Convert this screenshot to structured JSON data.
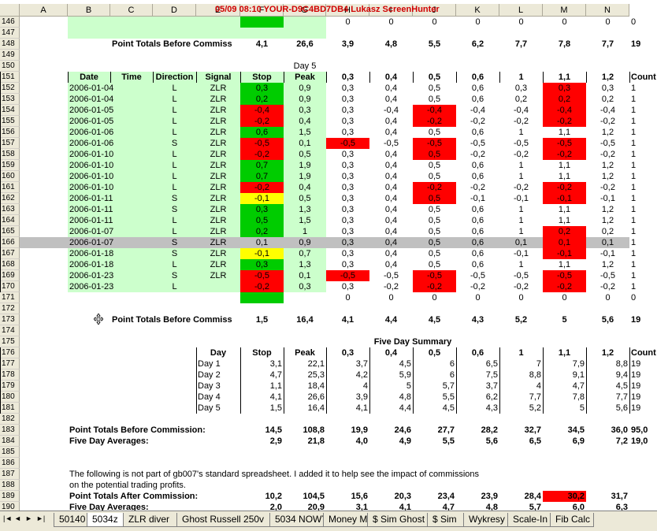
{
  "titlebar": {
    "text": "05/09  08:10  YOUR-D9C4BD7DB4  Lukasz  ScreenHunter"
  },
  "columns": [
    "A",
    "B",
    "C",
    "D",
    "E",
    "F",
    "G",
    "H",
    "I",
    "J",
    "K",
    "L",
    "M",
    "N"
  ],
  "rows_numbers": [
    "146",
    "147",
    "148",
    "149",
    "150",
    "151",
    "152",
    "153",
    "154",
    "155",
    "156",
    "157",
    "158",
    "159",
    "160",
    "161",
    "162",
    "163",
    "164",
    "165",
    "166",
    "167",
    "168",
    "169",
    "170",
    "171",
    "172",
    "173",
    "174",
    "175",
    "176",
    "177",
    "178",
    "179",
    "180",
    "181",
    "182",
    "183",
    "184",
    "185",
    "186",
    "187",
    "188",
    "189",
    "190"
  ],
  "colors": {
    "light_green": "#ccffcc",
    "green": "#00cc00",
    "red": "#ff0000",
    "yellow": "#ffff00",
    "grey_row": "#c0c0c0"
  },
  "r146": {
    "vals": [
      "0",
      "0",
      "0",
      "0",
      "0",
      "0",
      "0",
      "0"
    ]
  },
  "r148": {
    "label": "Point Totals Before Commiss",
    "stop": "4,1",
    "peak": "26,6",
    "vals": [
      "3,9",
      "4,8",
      "5,5",
      "6,2",
      "7,7",
      "7,8",
      "7,7",
      "19"
    ]
  },
  "r150": {
    "label": "Day 5"
  },
  "r151": {
    "headers": [
      "Date",
      "Time",
      "Direction",
      "Signal",
      "Stop",
      "Peak",
      "0,3",
      "0,4",
      "0,5",
      "0,6",
      "1",
      "1,1",
      "1,2",
      "Count"
    ]
  },
  "day5": [
    [
      "2006-01-04",
      "L",
      "ZLR",
      "0,3",
      "0,9",
      "0,3",
      "0,4",
      "0,5",
      "0,6",
      "0,3",
      "0,3",
      "0,3",
      "1"
    ],
    [
      "2006-01-04",
      "L",
      "ZLR",
      "0,2",
      "0,9",
      "0,3",
      "0,4",
      "0,5",
      "0,6",
      "0,2",
      "0,2",
      "0,2",
      "1"
    ],
    [
      "2006-01-05",
      "L",
      "ZLR",
      "-0,4",
      "0,3",
      "0,3",
      "-0,4",
      "-0,4",
      "-0,4",
      "-0,4",
      "-0,4",
      "-0,4",
      "1"
    ],
    [
      "2006-01-05",
      "L",
      "ZLR",
      "-0,2",
      "0,4",
      "0,3",
      "0,4",
      "-0,2",
      "-0,2",
      "-0,2",
      "-0,2",
      "-0,2",
      "1"
    ],
    [
      "2006-01-06",
      "L",
      "ZLR",
      "0,6",
      "1,5",
      "0,3",
      "0,4",
      "0,5",
      "0,6",
      "1",
      "1,1",
      "1,2",
      "1"
    ],
    [
      "2006-01-06",
      "S",
      "ZLR",
      "-0,5",
      "0,1",
      "-0,5",
      "-0,5",
      "-0,5",
      "-0,5",
      "-0,5",
      "-0,5",
      "-0,5",
      "1"
    ],
    [
      "2006-01-10",
      "L",
      "ZLR",
      "-0,2",
      "0,5",
      "0,3",
      "0,4",
      "0,5",
      "-0,2",
      "-0,2",
      "-0,2",
      "-0,2",
      "1"
    ],
    [
      "2006-01-10",
      "L",
      "ZLR",
      "0,7",
      "1,9",
      "0,3",
      "0,4",
      "0,5",
      "0,6",
      "1",
      "1,1",
      "1,2",
      "1"
    ],
    [
      "2006-01-10",
      "L",
      "ZLR",
      "0,7",
      "1,9",
      "0,3",
      "0,4",
      "0,5",
      "0,6",
      "1",
      "1,1",
      "1,2",
      "1"
    ],
    [
      "2006-01-10",
      "L",
      "ZLR",
      "-0,2",
      "0,4",
      "0,3",
      "0,4",
      "-0,2",
      "-0,2",
      "-0,2",
      "-0,2",
      "-0,2",
      "1"
    ],
    [
      "2006-01-11",
      "S",
      "ZLR",
      "-0,1",
      "0,5",
      "0,3",
      "0,4",
      "0,5",
      "-0,1",
      "-0,1",
      "-0,1",
      "-0,1",
      "1"
    ],
    [
      "2006-01-11",
      "S",
      "ZLR",
      "0,3",
      "1,3",
      "0,3",
      "0,4",
      "0,5",
      "0,6",
      "1",
      "1,1",
      "1,2",
      "1"
    ],
    [
      "2006-01-11",
      "L",
      "ZLR",
      "0,5",
      "1,5",
      "0,3",
      "0,4",
      "0,5",
      "0,6",
      "1",
      "1,1",
      "1,2",
      "1"
    ],
    [
      "2006-01-07",
      "L",
      "ZLR",
      "0,2",
      "1",
      "0,3",
      "0,4",
      "0,5",
      "0,6",
      "1",
      "0,2",
      "0,2",
      "1"
    ],
    [
      "2006-01-07",
      "S",
      "ZLR",
      "0,1",
      "0,9",
      "0,3",
      "0,4",
      "0,5",
      "0,6",
      "0,1",
      "0,1",
      "0,1",
      "1"
    ],
    [
      "2006-01-18",
      "S",
      "ZLR",
      "-0,1",
      "0,7",
      "0,3",
      "0,4",
      "0,5",
      "0,6",
      "-0,1",
      "-0,1",
      "-0,1",
      "1"
    ],
    [
      "2006-01-18",
      "L",
      "ZLR",
      "0,3",
      "1,3",
      "0,3",
      "0,4",
      "0,5",
      "0,6",
      "1",
      "1,1",
      "1,2",
      "1"
    ],
    [
      "2006-01-23",
      "S",
      "ZLR",
      "-0,5",
      "0,1",
      "-0,5",
      "-0,5",
      "-0,5",
      "-0,5",
      "-0,5",
      "-0,5",
      "-0,5",
      "1"
    ],
    [
      "2006-01-23",
      "L",
      "",
      "-0,2",
      "0,3",
      "0,3",
      "-0,2",
      "-0,2",
      "-0,2",
      "-0,2",
      "-0,2",
      "-0,2",
      "1"
    ]
  ],
  "r171": {
    "vals": [
      "0",
      "0",
      "0",
      "0",
      "0",
      "0",
      "0",
      "0"
    ]
  },
  "r173": {
    "label": "Point Totals Before Commiss",
    "stop": "1,5",
    "peak": "16,4",
    "vals": [
      "4,1",
      "4,4",
      "4,5",
      "4,3",
      "5,2",
      "5",
      "5,6",
      "19"
    ]
  },
  "r175": {
    "label": "Five Day Summary"
  },
  "summary_headers": [
    "Day",
    "Stop",
    "Peak",
    "0,3",
    "0,4",
    "0,5",
    "0,6",
    "1",
    "1,1",
    "1,2",
    "Count"
  ],
  "summary": [
    [
      "Day 1",
      "3,1",
      "22,1",
      "3,7",
      "4,5",
      "6",
      "6,5",
      "7",
      "7,9",
      "8,8",
      "19"
    ],
    [
      "Day 2",
      "4,7",
      "25,3",
      "4,2",
      "5,9",
      "6",
      "7,5",
      "8,8",
      "9,1",
      "9,4",
      "19"
    ],
    [
      "Day 3",
      "1,1",
      "18,4",
      "4",
      "5",
      "5,7",
      "3,7",
      "4",
      "4,7",
      "4,5",
      "19"
    ],
    [
      "Day 4",
      "4,1",
      "26,6",
      "3,9",
      "4,8",
      "5,5",
      "6,2",
      "7,7",
      "7,8",
      "7,7",
      "19"
    ],
    [
      "Day 5",
      "1,5",
      "16,4",
      "4,1",
      "4,4",
      "4,5",
      "4,3",
      "5,2",
      "5",
      "5,6",
      "19"
    ]
  ],
  "r183": {
    "label": "Point Totals Before Commission:",
    "vals": [
      "14,5",
      "108,8",
      "19,9",
      "24,6",
      "27,7",
      "28,2",
      "32,7",
      "34,5",
      "36,0",
      "95,0"
    ]
  },
  "r184": {
    "label": "Five Day Averages:",
    "vals": [
      "2,9",
      "21,8",
      "4,0",
      "4,9",
      "5,5",
      "5,6",
      "6,5",
      "6,9",
      "7,2",
      "19,0"
    ]
  },
  "r187": {
    "text": "The following is not part of gb007's standard spreadsheet.  I added it to help see the impact of commissions"
  },
  "r188": {
    "text": "on the potential trading profits."
  },
  "r189": {
    "label": "Point Totals After Commission:",
    "vals": [
      "10,2",
      "104,5",
      "15,6",
      "20,3",
      "23,4",
      "23,9",
      "28,4",
      "30,2",
      "31,7"
    ]
  },
  "r190": {
    "label": "Five Day Averages:",
    "vals": [
      "2,0",
      "20,9",
      "3,1",
      "4,1",
      "4,7",
      "4,8",
      "5,7",
      "6,0",
      "6,3"
    ]
  },
  "tabs": [
    "50140",
    "5034z",
    "ZLR diver",
    "Ghost Russell 250v",
    "5034 NOWY",
    "Money M",
    "$ Sim Ghost",
    "$ Sim",
    "Wykresy",
    "Scale-In",
    "Fib Calc"
  ],
  "active_tab": "5034z"
}
